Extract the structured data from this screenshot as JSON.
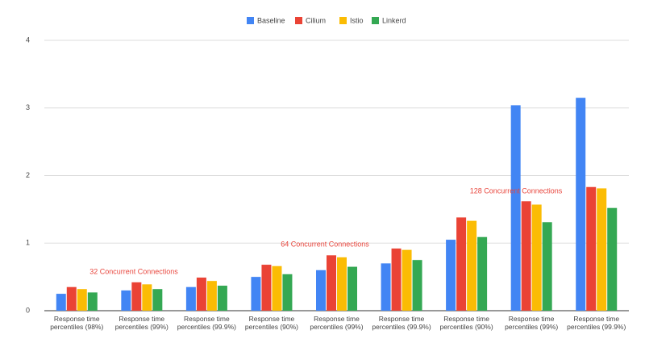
{
  "chart_data": {
    "type": "bar",
    "categories": [
      "Response time percentiles (98%)",
      "Response time percentiles (99%)",
      "Response time percentiles (99.9%)",
      "Response time percentiles (90%)",
      "Response time percentiles (99%)",
      "Response time percentiles (99.9%)",
      "Response time percentiles (90%)",
      "Response time percentiles (99%)",
      "Response time percentiles (99.9%)"
    ],
    "series": [
      {
        "name": "Baseline",
        "color": "#4285f4",
        "values": [
          0.25,
          0.3,
          0.35,
          0.5,
          0.6,
          0.7,
          1.05,
          3.04,
          3.15
        ]
      },
      {
        "name": "Cilium",
        "color": "#ea4335",
        "values": [
          0.35,
          0.42,
          0.49,
          0.68,
          0.82,
          0.92,
          1.38,
          1.62,
          1.83
        ]
      },
      {
        "name": "Istio",
        "color": "#fbbc04",
        "values": [
          0.32,
          0.39,
          0.44,
          0.66,
          0.79,
          0.9,
          1.33,
          1.57,
          1.81
        ]
      },
      {
        "name": "Linkerd",
        "color": "#34a853",
        "values": [
          0.27,
          0.32,
          0.37,
          0.54,
          0.65,
          0.75,
          1.09,
          1.31,
          1.52
        ]
      }
    ],
    "annotations": [
      "32 Concurrent Connections",
      "64 Concurrent Connections",
      "128 Concurrent Connections"
    ],
    "annotation_color": "#e8453c",
    "ylim": [
      0,
      4
    ],
    "yticks": [
      0,
      1,
      2,
      3,
      4
    ],
    "grid": true,
    "legend": "top"
  }
}
